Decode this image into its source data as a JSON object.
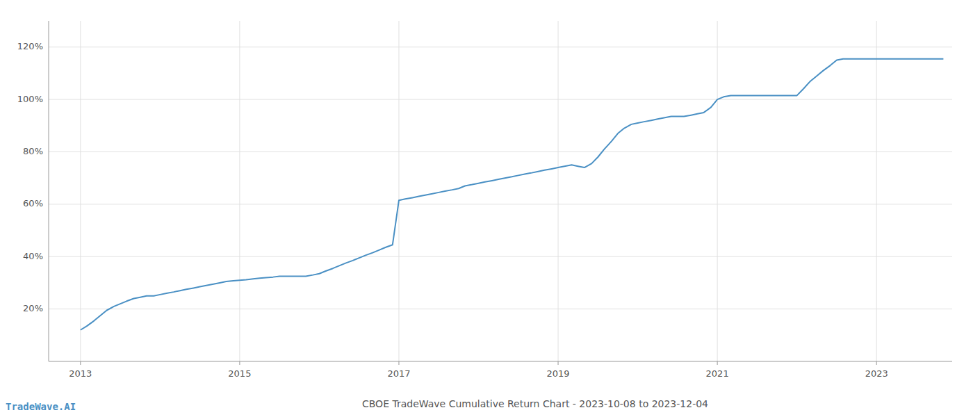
{
  "chart_data": {
    "type": "line",
    "title": "CBOE TradeWave Cumulative Return Chart - 2023-10-08 to 2023-12-04",
    "annotations": [
      "TradeWave.AI"
    ],
    "color": "#4a90c4",
    "grid": true,
    "x": [
      2013.0,
      2013.08,
      2013.17,
      2013.25,
      2013.33,
      2013.42,
      2013.5,
      2013.58,
      2013.67,
      2013.75,
      2013.83,
      2013.92,
      2014.0,
      2014.08,
      2014.17,
      2014.25,
      2014.33,
      2014.42,
      2014.5,
      2014.58,
      2014.67,
      2014.75,
      2014.83,
      2014.92,
      2015.0,
      2015.08,
      2015.17,
      2015.25,
      2015.33,
      2015.42,
      2015.5,
      2015.58,
      2015.67,
      2015.75,
      2015.83,
      2015.92,
      2016.0,
      2016.08,
      2016.17,
      2016.25,
      2016.33,
      2016.42,
      2016.5,
      2016.58,
      2016.67,
      2016.75,
      2016.83,
      2016.92,
      2017.0,
      2017.08,
      2017.17,
      2017.25,
      2017.33,
      2017.42,
      2017.5,
      2017.58,
      2017.67,
      2017.75,
      2017.83,
      2017.92,
      2018.0,
      2018.08,
      2018.17,
      2018.25,
      2018.33,
      2018.42,
      2018.5,
      2018.58,
      2018.67,
      2018.75,
      2018.83,
      2018.92,
      2019.0,
      2019.08,
      2019.17,
      2019.25,
      2019.33,
      2019.42,
      2019.5,
      2019.58,
      2019.67,
      2019.75,
      2019.83,
      2019.92,
      2020.0,
      2020.08,
      2020.17,
      2020.25,
      2020.33,
      2020.42,
      2020.5,
      2020.58,
      2020.67,
      2020.75,
      2020.83,
      2020.92,
      2021.0,
      2021.08,
      2021.17,
      2021.25,
      2021.33,
      2021.42,
      2021.5,
      2021.58,
      2021.67,
      2021.75,
      2021.83,
      2021.92,
      2022.0,
      2022.08,
      2022.17,
      2022.25,
      2022.33,
      2022.42,
      2022.5,
      2022.58,
      2022.67,
      2022.75,
      2022.83,
      2022.92,
      2023.0,
      2023.08,
      2023.17,
      2023.25,
      2023.33,
      2023.42,
      2023.5,
      2023.58,
      2023.67,
      2023.75,
      2023.84
    ],
    "values": [
      12.0,
      13.5,
      15.5,
      17.5,
      19.5,
      21.0,
      22.0,
      23.0,
      24.0,
      24.5,
      25.0,
      25.0,
      25.5,
      26.0,
      26.5,
      27.0,
      27.5,
      28.0,
      28.5,
      29.0,
      29.5,
      30.0,
      30.5,
      30.8,
      31.0,
      31.2,
      31.5,
      31.8,
      32.0,
      32.2,
      32.5,
      32.5,
      32.5,
      32.5,
      32.5,
      33.0,
      33.5,
      34.5,
      35.5,
      36.5,
      37.5,
      38.5,
      39.5,
      40.5,
      41.5,
      42.5,
      43.5,
      44.5,
      61.5,
      62.0,
      62.5,
      63.0,
      63.5,
      64.0,
      64.5,
      65.0,
      65.5,
      66.0,
      67.0,
      67.5,
      68.0,
      68.5,
      69.0,
      69.5,
      70.0,
      70.5,
      71.0,
      71.5,
      72.0,
      72.5,
      73.0,
      73.5,
      74.0,
      74.5,
      75.0,
      74.5,
      74.0,
      75.5,
      78.0,
      81.0,
      84.0,
      87.0,
      89.0,
      90.5,
      91.0,
      91.5,
      92.0,
      92.5,
      93.0,
      93.5,
      93.5,
      93.5,
      94.0,
      94.5,
      95.0,
      97.0,
      100.0,
      101.0,
      101.5,
      101.5,
      101.5,
      101.5,
      101.5,
      101.5,
      101.5,
      101.5,
      101.5,
      101.5,
      101.5,
      104.0,
      107.0,
      109.0,
      111.0,
      113.0,
      115.0,
      115.5,
      115.5,
      115.5,
      115.5,
      115.5,
      115.5,
      115.5,
      115.5,
      115.5,
      115.5,
      115.5,
      115.5,
      115.5,
      115.5,
      115.5,
      115.5
    ],
    "xlim": [
      2012.6,
      2023.95
    ],
    "xticks": [
      2013,
      2015,
      2017,
      2019,
      2021,
      2023
    ],
    "ylim": [
      0,
      130
    ],
    "yticks": [
      {
        "value": 20,
        "label": "20%"
      },
      {
        "value": 40,
        "label": "40%"
      },
      {
        "value": 60,
        "label": "60%"
      },
      {
        "value": 80,
        "label": "80%"
      },
      {
        "value": 100,
        "label": "100%"
      },
      {
        "value": 120,
        "label": "120%"
      }
    ]
  }
}
